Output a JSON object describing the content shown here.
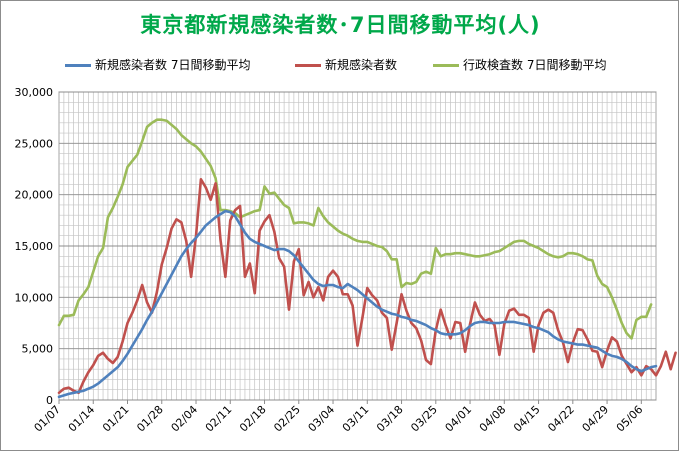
{
  "colors": {
    "title": "#00a84a",
    "avg": "#4f81bd",
    "daily": "#c0504d",
    "tests": "#9bbb59",
    "grid": "#b0b0b0"
  },
  "chart_data": {
    "type": "line",
    "title": "東京都新規感染者数･7日間移動平均(人)",
    "ylim": [
      0,
      30000
    ],
    "grid": true,
    "legend_position": "top",
    "y_ticks": [
      "0",
      "5,000",
      "10,000",
      "15,000",
      "20,000",
      "25,000",
      "30,000"
    ],
    "x_ticks": [
      "01/07",
      "01/14",
      "01/21",
      "01/28",
      "02/04",
      "02/11",
      "02/18",
      "02/25",
      "03/04",
      "03/11",
      "03/18",
      "03/25",
      "04/01",
      "04/08",
      "04/15",
      "04/22",
      "04/29",
      "05/06"
    ],
    "x_start": "2022-01-07",
    "series": [
      {
        "name": "新規感染者数 7日間移動平均",
        "color": "#4f81bd",
        "values": [
          300,
          450,
          600,
          700,
          800,
          900,
          1100,
          1300,
          1600,
          2000,
          2400,
          2800,
          3200,
          3800,
          4500,
          5300,
          6100,
          6900,
          7800,
          8600,
          9500,
          10400,
          11300,
          12200,
          13100,
          14000,
          14700,
          15300,
          15800,
          16400,
          17000,
          17400,
          17800,
          18100,
          18400,
          18300,
          17900,
          17100,
          16300,
          15700,
          15400,
          15200,
          15000,
          14800,
          14600,
          14700,
          14700,
          14500,
          14100,
          13500,
          12900,
          12300,
          11700,
          11300,
          11100,
          11200,
          11200,
          11000,
          10900,
          11300,
          11000,
          10700,
          10300,
          9900,
          9500,
          9100,
          8800,
          8600,
          8400,
          8300,
          8100,
          8000,
          7800,
          7700,
          7500,
          7300,
          7000,
          6800,
          6500,
          6400,
          6400,
          6400,
          6500,
          6800,
          7200,
          7500,
          7600,
          7600,
          7500,
          7500,
          7500,
          7600,
          7600,
          7600,
          7500,
          7400,
          7300,
          7100,
          7000,
          6800,
          6600,
          6200,
          5900,
          5700,
          5600,
          5500,
          5400,
          5400,
          5300,
          5200,
          5100,
          4800,
          4500,
          4300,
          4200,
          4000,
          3700,
          3300,
          3000,
          2800,
          3000,
          3200,
          3300
        ]
      },
      {
        "name": "新規感染者数",
        "color": "#c0504d",
        "values": [
          700,
          1100,
          1200,
          900,
          700,
          1800,
          2700,
          3400,
          4300,
          4600,
          4000,
          3600,
          4200,
          5700,
          7500,
          8500,
          9700,
          11200,
          9500,
          8500,
          10500,
          13200,
          14800,
          16700,
          17600,
          17300,
          15500,
          12000,
          16000,
          21500,
          20700,
          19500,
          21100,
          15600,
          12000,
          17500,
          18500,
          18900,
          12000,
          13300,
          10400,
          16500,
          17400,
          18000,
          16400,
          13800,
          13000,
          8800,
          13500,
          14700,
          10200,
          11500,
          10000,
          11000,
          9700,
          12000,
          12600,
          12000,
          10300,
          10300,
          9200,
          5300,
          8000,
          10900,
          10200,
          9700,
          8500,
          8000,
          4900,
          7500,
          10300,
          8700,
          7500,
          7000,
          5800,
          3900,
          3500,
          6800,
          8800,
          7300,
          6000,
          7600,
          7500,
          4700,
          7400,
          9500,
          8300,
          7700,
          7900,
          7300,
          4400,
          7400,
          8700,
          8900,
          8300,
          8300,
          8000,
          4700,
          7300,
          8500,
          8800,
          8500,
          6800,
          5600,
          3700,
          5600,
          6900,
          6800,
          5900,
          4800,
          4700,
          3200,
          4800,
          6100,
          5700,
          4300,
          3500,
          2700,
          3200,
          2400,
          3300,
          3000,
          2400,
          3300,
          4700,
          3000,
          4600
        ]
      },
      {
        "name": "行政検査数 7日間移動平均",
        "color": "#9bbb59",
        "values": [
          7300,
          8200,
          8200,
          8300,
          9700,
          10300,
          11000,
          12500,
          14000,
          14800,
          17800,
          18700,
          19800,
          21000,
          22700,
          23300,
          23900,
          25200,
          26600,
          27000,
          27300,
          27300,
          27200,
          26800,
          26400,
          25800,
          25400,
          25000,
          24700,
          24200,
          23500,
          22800,
          21600,
          18500,
          18500,
          18400,
          18200,
          17800,
          18000,
          18200,
          18400,
          18500,
          20800,
          20100,
          20200,
          19600,
          19000,
          18700,
          17200,
          17300,
          17300,
          17200,
          17000,
          18700,
          17900,
          17300,
          16900,
          16500,
          16200,
          16000,
          15700,
          15500,
          15400,
          15400,
          15200,
          15000,
          14900,
          14500,
          13700,
          13700,
          11000,
          11400,
          11300,
          11500,
          12300,
          12500,
          12300,
          14800,
          14000,
          14200,
          14200,
          14300,
          14300,
          14200,
          14100,
          14000,
          14000,
          14100,
          14200,
          14400,
          14500,
          14800,
          15100,
          15400,
          15500,
          15500,
          15200,
          15000,
          14800,
          14500,
          14200,
          14000,
          13900,
          14000,
          14300,
          14300,
          14200,
          14000,
          13700,
          13600,
          12100,
          11300,
          11000,
          10000,
          8800,
          7500,
          6500,
          6000,
          7800,
          8100,
          8100,
          9300
        ]
      }
    ]
  }
}
